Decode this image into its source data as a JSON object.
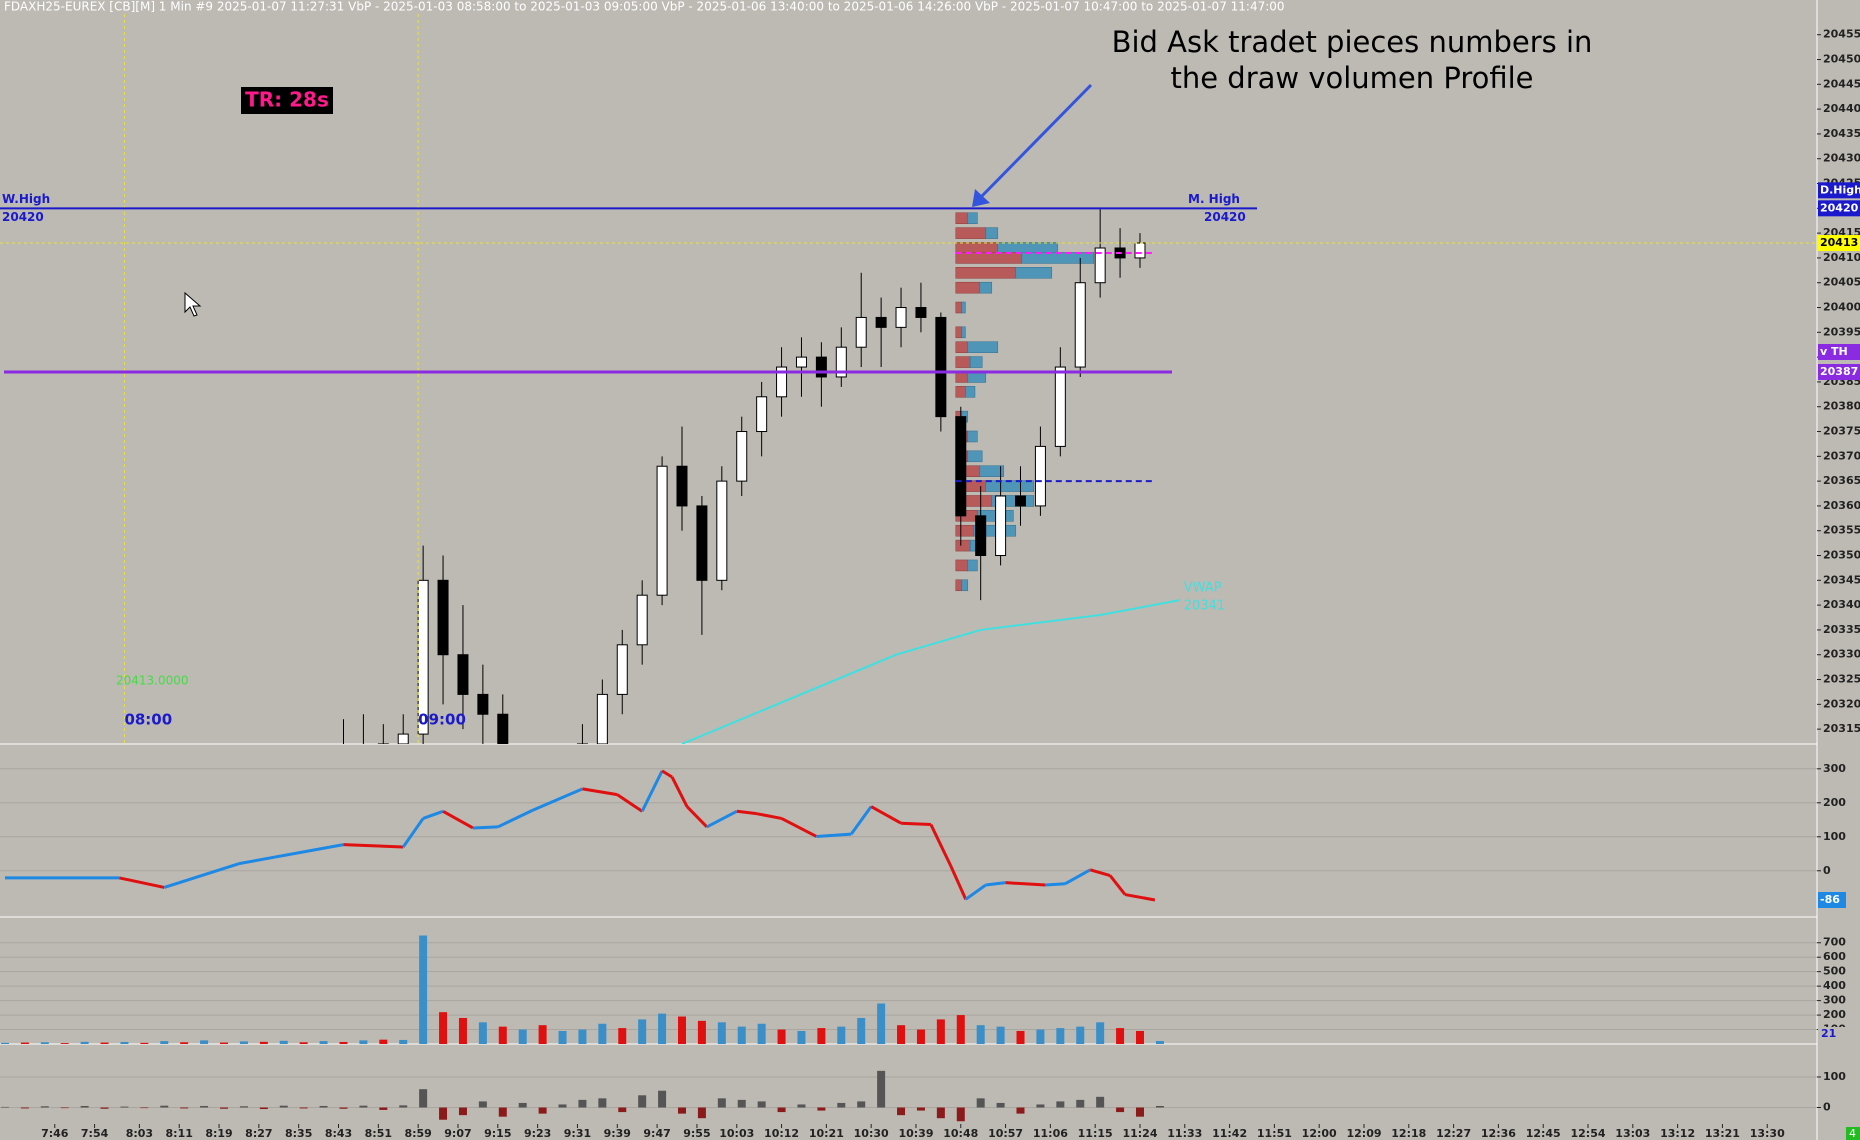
{
  "chart_data": [
    {
      "type": "candlestick",
      "title": "FDAXH25-EUREX [CB][M]  1 Min  #9 2025-01-07 11:27:31 VbP - 2025-01-03  08:58:00 to 2025-01-03  09:05:00  VbP - 2025-01-06  13:40:00 to 2025-01-06  14:26:00  VbP - 2025-01-07  10:47:00 to 2025-01-07  11:47:00",
      "x": [
        524,
        528,
        532,
        536,
        540,
        544,
        548,
        552,
        556,
        560,
        564,
        568,
        572,
        576,
        580,
        584,
        588,
        592,
        596,
        600,
        604,
        608,
        612,
        616,
        620,
        624,
        628,
        632,
        636,
        640,
        644,
        648,
        652,
        656,
        660,
        664,
        668,
        672,
        676,
        680,
        684
      ],
      "open": [
        20305,
        20310,
        20308,
        20312,
        20314,
        20345,
        20330,
        20322,
        20318,
        20305,
        20300,
        20304,
        20310,
        20312,
        20322,
        20332,
        20342,
        20368,
        20360,
        20345,
        20365,
        20375,
        20382,
        20388,
        20390,
        20386,
        20392,
        20398,
        20396,
        20400,
        20398,
        20378,
        20358,
        20350,
        20362,
        20360,
        20372,
        20388,
        20405,
        20412,
        20410
      ],
      "high": [
        20317,
        20318,
        20316,
        20318,
        20352,
        20350,
        20340,
        20328,
        20322,
        20310,
        20308,
        20312,
        20316,
        20325,
        20335,
        20345,
        20370,
        20376,
        20362,
        20368,
        20378,
        20385,
        20392,
        20394,
        20393,
        20396,
        20407,
        20402,
        20404,
        20405,
        20399,
        20380,
        20364,
        20368,
        20368,
        20376,
        20392,
        20410,
        20420,
        20416,
        20415
      ],
      "low": [
        20300,
        20302,
        20300,
        20305,
        20312,
        20320,
        20315,
        20312,
        20300,
        20295,
        20294,
        20298,
        20305,
        20308,
        20318,
        20328,
        20340,
        20355,
        20334,
        20343,
        20362,
        20370,
        20378,
        20382,
        20380,
        20384,
        20388,
        20388,
        20392,
        20395,
        20375,
        20352,
        20341,
        20348,
        20356,
        20358,
        20370,
        20386,
        20402,
        20406,
        20408
      ],
      "close": [
        20310,
        20308,
        20312,
        20314,
        20345,
        20330,
        20322,
        20318,
        20305,
        20300,
        20304,
        20310,
        20312,
        20322,
        20332,
        20342,
        20368,
        20360,
        20345,
        20365,
        20375,
        20382,
        20388,
        20390,
        20386,
        20392,
        20398,
        20396,
        20400,
        20398,
        20378,
        20358,
        20350,
        20362,
        20360,
        20372,
        20388,
        20405,
        20412,
        20410,
        20413
      ],
      "xlim": [
        455,
        820
      ],
      "ylim": [
        20312,
        20462
      ],
      "yticks": [
        20315,
        20320,
        20325,
        20330,
        20335,
        20340,
        20345,
        20350,
        20355,
        20360,
        20365,
        20370,
        20375,
        20380,
        20385,
        20390,
        20395,
        20400,
        20405,
        20410,
        20415,
        20420,
        20425,
        20430,
        20435,
        20440,
        20445,
        20450,
        20455
      ],
      "tr_label": "TR: 28s",
      "annotation": [
        "Bid Ask tradet pieces numbers in",
        "the draw volumen Profile"
      ],
      "high_line": {
        "value": 20420,
        "left_label": "W.High",
        "right_label": "M. High",
        "color": "#1a1acc"
      },
      "day_high_label": "D.High",
      "th_line": {
        "label": "v TH",
        "value": 20387,
        "color": "#8a2be2"
      },
      "last_price": 20413,
      "price_readout": "20413.0000",
      "sessions": [
        {
          "value": 480,
          "label": "08:00"
        },
        {
          "value": 539,
          "label": "09:00"
        }
      ],
      "poc": 20411,
      "value_area_low": 20365,
      "vwap": {
        "name": "VWAP",
        "color": "#40e0e0",
        "x": [
          592,
          635,
          652,
          676,
          692
        ],
        "values": [
          20312,
          20330,
          20335,
          20338,
          20341
        ]
      },
      "volume_profile": {
        "start_x": 647,
        "prices": [
          20418,
          20415,
          20412,
          20410,
          20407,
          20404,
          20400,
          20395,
          20392,
          20389,
          20386,
          20383,
          20378,
          20374,
          20370,
          20367,
          20364,
          20361,
          20358,
          20355,
          20352,
          20348,
          20344
        ],
        "bid": [
          10,
          25,
          35,
          55,
          50,
          20,
          5,
          5,
          10,
          12,
          10,
          8,
          5,
          10,
          10,
          20,
          25,
          30,
          18,
          15,
          12,
          10,
          5
        ],
        "ask": [
          8,
          10,
          50,
          60,
          30,
          10,
          3,
          3,
          25,
          10,
          15,
          8,
          5,
          8,
          12,
          20,
          40,
          35,
          30,
          35,
          10,
          8,
          5
        ]
      }
    },
    {
      "type": "line",
      "x": [
        456,
        479,
        488,
        503,
        524,
        536,
        540,
        544,
        550,
        555,
        562,
        572,
        579,
        584,
        588,
        590,
        593,
        597,
        603,
        607,
        612,
        619,
        626,
        630,
        636,
        642,
        646,
        649,
        653,
        657,
        665,
        669,
        674,
        678,
        681,
        687
      ],
      "values": [
        -21,
        -21,
        -49,
        21,
        77,
        70,
        154,
        175,
        126,
        129,
        178,
        241,
        224,
        175,
        294,
        276,
        189,
        129,
        175,
        168,
        154,
        101,
        108,
        189,
        140,
        136,
        14,
        -84,
        -42,
        -35,
        -42,
        -38,
        3,
        -14,
        -70,
        -86
      ],
      "ylim": [
        -136,
        373
      ],
      "yticks": [
        0,
        100,
        200,
        300
      ]
    },
    {
      "type": "bar",
      "x": [
        456,
        460,
        464,
        468,
        472,
        476,
        480,
        484,
        488,
        492,
        496,
        500,
        504,
        508,
        512,
        516,
        520,
        524,
        528,
        532,
        536,
        540,
        544,
        548,
        552,
        556,
        560,
        564,
        568,
        572,
        576,
        580,
        584,
        588,
        592,
        596,
        600,
        604,
        608,
        612,
        616,
        620,
        624,
        628,
        632,
        636,
        640,
        644,
        648,
        652,
        656,
        660,
        664,
        668,
        672,
        676,
        680,
        684,
        688
      ],
      "values": [
        8,
        10,
        12,
        6,
        15,
        10,
        14,
        8,
        20,
        12,
        25,
        10,
        18,
        15,
        22,
        12,
        20,
        14,
        25,
        30,
        28,
        750,
        220,
        180,
        150,
        120,
        100,
        130,
        90,
        100,
        140,
        110,
        170,
        210,
        190,
        160,
        150,
        120,
        140,
        100,
        90,
        110,
        120,
        180,
        280,
        130,
        100,
        170,
        200,
        130,
        120,
        90,
        100,
        110,
        120,
        150,
        110,
        90,
        21
      ],
      "ylim": [
        0,
        878
      ],
      "yticks": [
        100,
        200,
        300,
        400,
        500,
        600,
        700
      ]
    },
    {
      "type": "bar",
      "values": [
        2,
        -3,
        4,
        -2,
        5,
        -4,
        3,
        -2,
        6,
        -3,
        5,
        -4,
        4,
        -5,
        6,
        -3,
        5,
        -4,
        6,
        -8,
        7,
        60,
        -40,
        -25,
        20,
        -30,
        15,
        -20,
        10,
        25,
        30,
        -15,
        40,
        55,
        -20,
        -35,
        30,
        25,
        20,
        -15,
        10,
        -10,
        15,
        20,
        120,
        -25,
        -10,
        -35,
        -45,
        30,
        15,
        -20,
        10,
        20,
        25,
        35,
        -15,
        -30,
        5
      ],
      "ylim": [
        -54,
        208
      ],
      "yticks": [
        0,
        100
      ],
      "xticks": [
        {
          "value": 466,
          "label": "7:46"
        },
        {
          "value": 474,
          "label": "7:54"
        },
        {
          "value": 483,
          "label": "8:03"
        },
        {
          "value": 491,
          "label": "8:11"
        },
        {
          "value": 499,
          "label": "8:19"
        },
        {
          "value": 507,
          "label": "8:27"
        },
        {
          "value": 515,
          "label": "8:35"
        },
        {
          "value": 523,
          "label": "8:43"
        },
        {
          "value": 531,
          "label": "8:51"
        },
        {
          "value": 539,
          "label": "8:59"
        },
        {
          "value": 547,
          "label": "9:07"
        },
        {
          "value": 555,
          "label": "9:15"
        },
        {
          "value": 563,
          "label": "9:23"
        },
        {
          "value": 571,
          "label": "9:31"
        },
        {
          "value": 579,
          "label": "9:39"
        },
        {
          "value": 587,
          "label": "9:47"
        },
        {
          "value": 595,
          "label": "9:55"
        },
        {
          "value": 603,
          "label": "10:03"
        },
        {
          "value": 612,
          "label": "10:12"
        },
        {
          "value": 621,
          "label": "10:21"
        },
        {
          "value": 630,
          "label": "10:30"
        },
        {
          "value": 639,
          "label": "10:39"
        },
        {
          "value": 648,
          "label": "10:48"
        },
        {
          "value": 657,
          "label": "10:57"
        },
        {
          "value": 666,
          "label": "11:06"
        },
        {
          "value": 675,
          "label": "11:15"
        },
        {
          "value": 684,
          "label": "11:24"
        },
        {
          "value": 693,
          "label": "11:33"
        },
        {
          "value": 702,
          "label": "11:42"
        },
        {
          "value": 711,
          "label": "11:51"
        },
        {
          "value": 720,
          "label": "12:00"
        },
        {
          "value": 729,
          "label": "12:09"
        },
        {
          "value": 738,
          "label": "12:18"
        },
        {
          "value": 747,
          "label": "12:27"
        },
        {
          "value": 756,
          "label": "12:36"
        },
        {
          "value": 765,
          "label": "12:45"
        },
        {
          "value": 774,
          "label": "12:54"
        },
        {
          "value": 783,
          "label": "13:03"
        },
        {
          "value": 792,
          "label": "13:12"
        },
        {
          "value": 801,
          "label": "13:21"
        },
        {
          "value": 810,
          "label": "13:30"
        }
      ],
      "corner_badge": "4"
    }
  ]
}
